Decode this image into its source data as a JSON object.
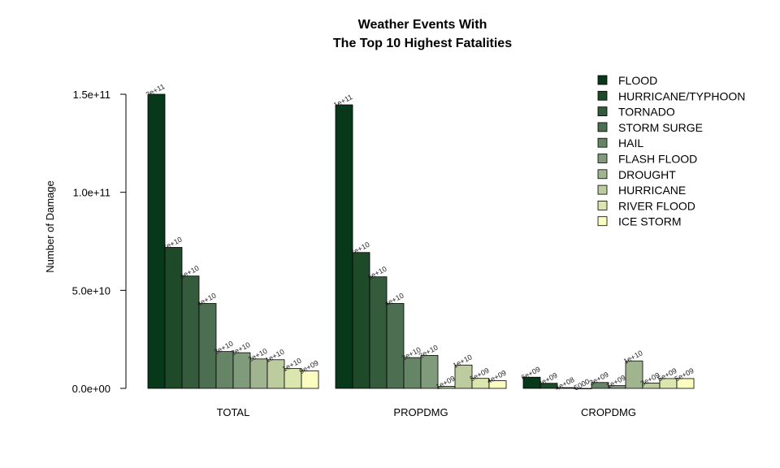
{
  "chart_data": {
    "type": "bar",
    "title": "Weather Events With",
    "subtitle": "The Top 10 Highest Fatalities",
    "xlabel": "",
    "ylabel": "Number of Damage",
    "ylim": [
      0,
      150000000000
    ],
    "yticks": [
      0,
      50000000000,
      100000000000,
      150000000000
    ],
    "ytick_labels": [
      "0.0e+00",
      "5.0e+10",
      "1.0e+11",
      "1.5e+11"
    ],
    "groups": [
      "TOTAL",
      "PROPDMG",
      "CROPDMG"
    ],
    "legend_position": "top-right",
    "series": [
      {
        "name": "FLOOD",
        "color": "#08381a",
        "values": [
          150000000000,
          144600000000,
          5700000000
        ],
        "labels": [
          "2e+11",
          "1e+11",
          "6e+09"
        ]
      },
      {
        "name": "HURRICANE/TYPHOON",
        "color": "#1e4a2a",
        "values": [
          71900000000,
          69300000000,
          2600000000
        ],
        "labels": [
          "7e+10",
          "7e+10",
          "3e+09"
        ]
      },
      {
        "name": "TORNADO",
        "color": "#345b3c",
        "values": [
          57300000000,
          56900000000,
          400000000
        ],
        "labels": [
          "6e+10",
          "6e+10",
          "4e+08"
        ]
      },
      {
        "name": "STORM SURGE",
        "color": "#4c6e51",
        "values": [
          43300000000,
          43300000000,
          5000
        ],
        "labels": [
          "4e+10",
          "4e+10",
          "5000"
        ]
      },
      {
        "name": "HAIL",
        "color": "#668466",
        "values": [
          18800000000,
          15700000000,
          3000000000
        ],
        "labels": [
          "2e+10",
          "2e+10",
          "3e+09"
        ]
      },
      {
        "name": "FLASH FLOOD",
        "color": "#809b7c",
        "values": [
          18200000000,
          16800000000,
          1400000000
        ],
        "labels": [
          "2e+10",
          "2e+10",
          "1e+09"
        ]
      },
      {
        "name": "DROUGHT",
        "color": "#9fb48f",
        "values": [
          15000000000,
          1000000000,
          14000000000
        ],
        "labels": [
          "2e+10",
          "1e+09",
          "1e+10"
        ]
      },
      {
        "name": "HURRICANE",
        "color": "#bccc9f",
        "values": [
          14600000000,
          11900000000,
          2700000000
        ],
        "labels": [
          "1e+10",
          "1e+10",
          "3e+09"
        ]
      },
      {
        "name": "RIVER FLOOD",
        "color": "#dbe6ae",
        "values": [
          10100000000,
          5100000000,
          5000000000
        ],
        "labels": [
          "1e+10",
          "5e+09",
          "5e+09"
        ]
      },
      {
        "name": "ICE STORM",
        "color": "#fafcc0",
        "values": [
          8900000000,
          3900000000,
          5000000000
        ],
        "labels": [
          "9e+09",
          "4e+09",
          "5e+09"
        ]
      }
    ]
  }
}
